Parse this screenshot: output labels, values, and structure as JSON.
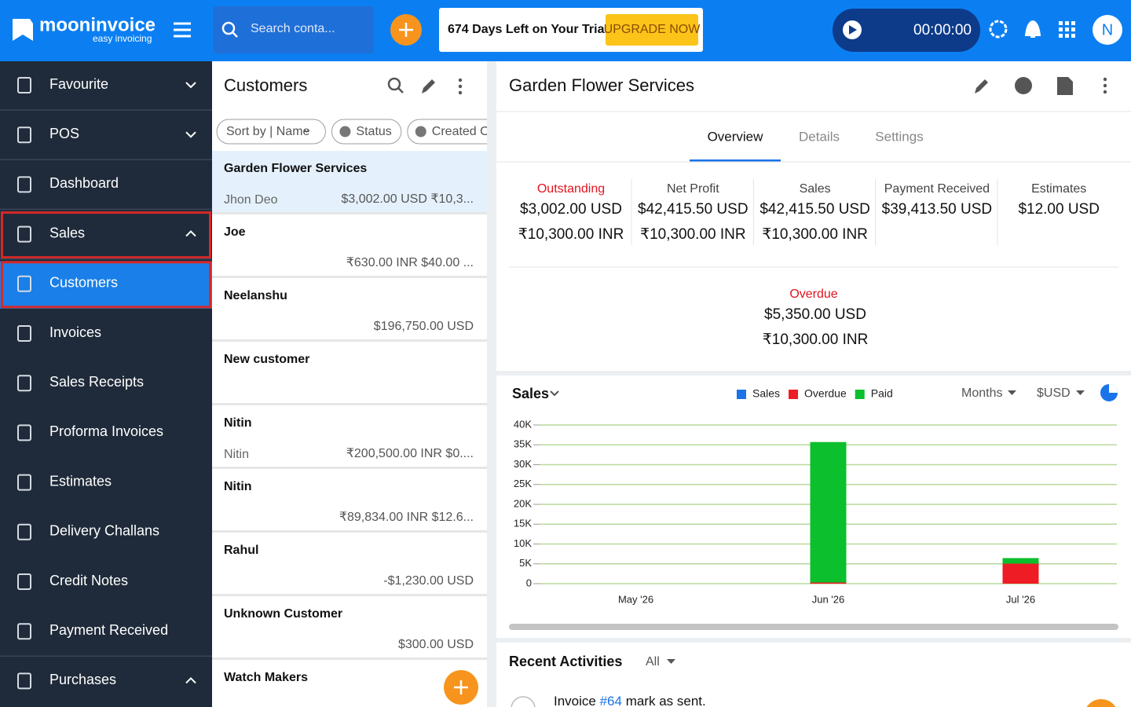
{
  "topbar": {
    "brand": "mooninvoice",
    "tagline": "easy invoicing",
    "search_placeholder": "Search conta...",
    "trial_text": "674 Days Left on Your Trial",
    "upgrade_button": "UPGRADE NOW",
    "timer": "00:00:00",
    "avatar": "N"
  },
  "sidebar": {
    "items": [
      {
        "label": "Favourite",
        "chevron": "down"
      },
      {
        "label": "POS",
        "chevron": "down"
      },
      {
        "label": "Dashboard"
      },
      {
        "label": "Sales",
        "chevron": "up",
        "outlined": true
      },
      {
        "label": "Customers",
        "selected": true,
        "outlined": true
      },
      {
        "label": "Invoices"
      },
      {
        "label": "Sales Receipts"
      },
      {
        "label": "Proforma Invoices"
      },
      {
        "label": "Estimates"
      },
      {
        "label": "Delivery Challans"
      },
      {
        "label": "Credit Notes"
      },
      {
        "label": "Payment Received"
      },
      {
        "label": "Purchases",
        "chevron": "up"
      }
    ]
  },
  "customers_panel": {
    "title": "Customers",
    "filters": [
      "Sort by | Name",
      "Status",
      "Created On"
    ],
    "customers": [
      {
        "name": "Garden Flower Services",
        "contact": "Jhon Deo",
        "amount": "$3,002.00 USD ₹10,3...",
        "selected": true
      },
      {
        "name": "Joe",
        "amount": "₹630.00 INR $40.00 ..."
      },
      {
        "name": "Neelanshu",
        "amount": "$196,750.00 USD"
      },
      {
        "name": "New customer"
      },
      {
        "name": "Nitin",
        "contact": "Nitin",
        "amount": "₹200,500.00 INR $0...."
      },
      {
        "name": "Nitin",
        "amount": "₹89,834.00 INR $12.6..."
      },
      {
        "name": "Rahul",
        "amount": "-$1,230.00 USD"
      },
      {
        "name": "Unknown Customer",
        "amount": "$300.00 USD"
      },
      {
        "name": "Watch Makers"
      }
    ]
  },
  "detail": {
    "title": "Garden Flower Services",
    "tabs": [
      "Overview",
      "Details",
      "Settings"
    ],
    "active_tab": 0,
    "stats": [
      {
        "label": "Outstanding",
        "values": [
          "$3,002.00 USD",
          "₹10,300.00 INR"
        ],
        "alert": true
      },
      {
        "label": "Net Profit",
        "values": [
          "$42,415.50 USD",
          "₹10,300.00 INR"
        ]
      },
      {
        "label": "Sales",
        "values": [
          "$42,415.50 USD",
          "₹10,300.00 INR"
        ]
      },
      {
        "label": "Payment Received",
        "values": [
          "$39,413.50 USD"
        ]
      },
      {
        "label": "Estimates",
        "values": [
          "$12.00 USD"
        ]
      }
    ],
    "overdue": {
      "label": "Overdue",
      "values": [
        "$5,350.00 USD",
        "₹10,300.00 INR"
      ]
    }
  },
  "chart_data": {
    "type": "bar",
    "stacked": true,
    "title": "Sales",
    "period": "Months",
    "currency": "$USD",
    "categories": [
      "May '26",
      "Jun '26",
      "Jul '26"
    ],
    "series": [
      {
        "name": "Sales",
        "color": "#1a73e8",
        "values": [
          null,
          null,
          null
        ]
      },
      {
        "name": "Overdue",
        "color": "#ee1c25",
        "values": [
          null,
          300,
          5050
        ]
      },
      {
        "name": "Paid",
        "color": "#0cbf2c",
        "values": [
          null,
          35400,
          1400
        ]
      }
    ],
    "ylim": [
      0,
      40000
    ],
    "yticks": [
      0,
      {
        "value": 5000,
        "label": "5K"
      },
      {
        "value": 10000,
        "label": "10K"
      },
      {
        "value": 15000,
        "label": "15K"
      },
      {
        "value": 20000,
        "label": "20K"
      },
      {
        "value": 25000,
        "label": "25K"
      },
      {
        "value": 30000,
        "label": "30K"
      },
      {
        "value": 35000,
        "label": "35K"
      },
      {
        "value": 40000,
        "label": "40K"
      }
    ],
    "grid": true,
    "grid_color": "#b9d99a"
  },
  "recent_activities": {
    "title": "Recent Activities",
    "filter": "All",
    "items": [
      {
        "parts": [
          "Invoice ",
          "#64",
          " mark as sent."
        ]
      }
    ]
  }
}
